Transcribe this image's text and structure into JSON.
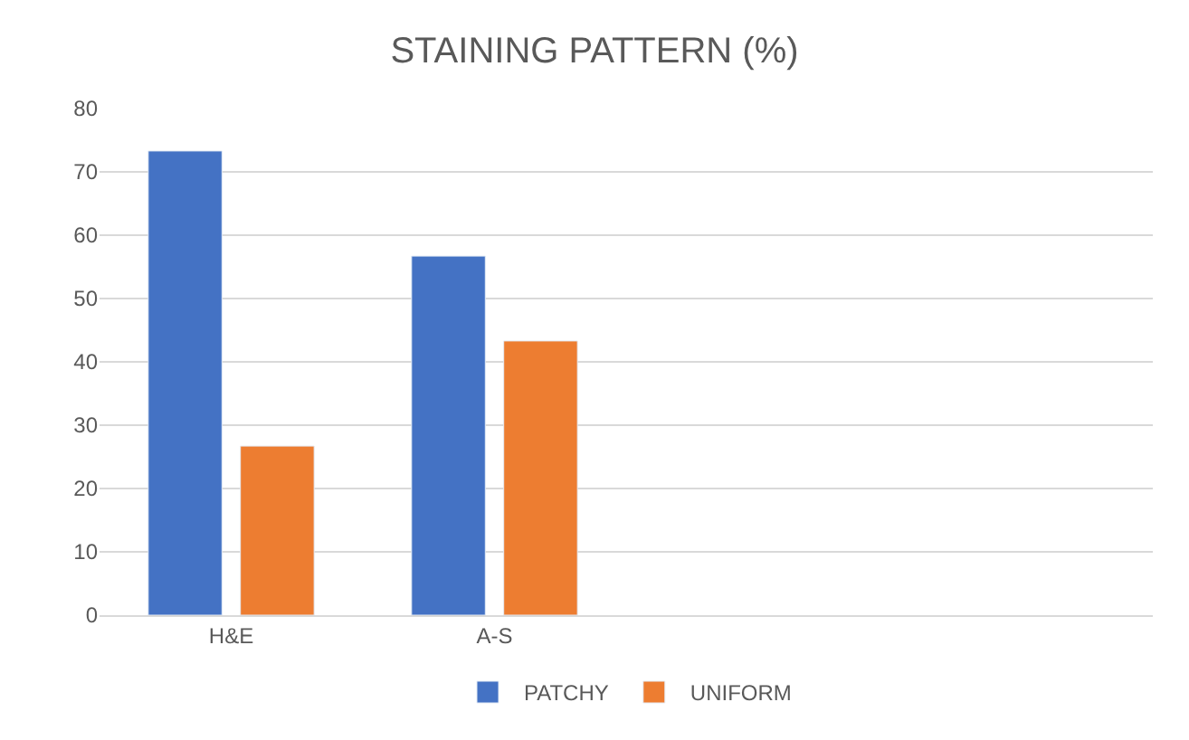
{
  "chart_data": {
    "type": "bar",
    "title": "STAINING PATTERN (%)",
    "categories": [
      "H&E",
      "A-S",
      null,
      null
    ],
    "series": [
      {
        "name": "PATCHY",
        "color": "#4472c4",
        "values": [
          73.3,
          56.7,
          null,
          null
        ]
      },
      {
        "name": "UNIFORM",
        "color": "#ed7d31",
        "values": [
          26.7,
          43.3,
          null,
          null
        ]
      }
    ],
    "ylim": [
      0,
      80
    ],
    "yticks": [
      0,
      10,
      20,
      30,
      40,
      50,
      60,
      70,
      80
    ],
    "grid": "y",
    "legend": "bottom"
  }
}
